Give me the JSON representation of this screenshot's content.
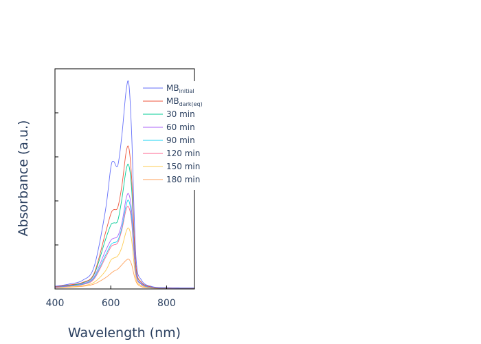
{
  "chart_data": {
    "type": "line",
    "title": "",
    "xlabel": "Wavelength (nm)",
    "ylabel": "Absorbance (a.u.)",
    "xlim": [
      400,
      900
    ],
    "ylim": [
      0,
      1.0
    ],
    "x_ticks": [
      "400",
      "600",
      "800"
    ],
    "y_ticks_labeled": false,
    "grid": false,
    "legend_position": "top-right",
    "series": [
      {
        "name": "MB",
        "name_sub": "initial",
        "color": "#636efa",
        "points": [
          [
            400,
            0.012
          ],
          [
            450,
            0.022
          ],
          [
            500,
            0.04
          ],
          [
            540,
            0.1
          ],
          [
            580,
            0.35
          ],
          [
            600,
            0.55
          ],
          [
            610,
            0.58
          ],
          [
            625,
            0.56
          ],
          [
            640,
            0.7
          ],
          [
            655,
            0.9
          ],
          [
            665,
            0.93
          ],
          [
            675,
            0.7
          ],
          [
            690,
            0.15
          ],
          [
            710,
            0.04
          ],
          [
            750,
            0.01
          ],
          [
            800,
            0.006
          ],
          [
            850,
            0.005
          ],
          [
            900,
            0.005
          ]
        ]
      },
      {
        "name": "MB",
        "name_sub": "dark(eq)",
        "color": "#EF553B",
        "points": [
          [
            400,
            0.01
          ],
          [
            450,
            0.018
          ],
          [
            500,
            0.03
          ],
          [
            540,
            0.07
          ],
          [
            580,
            0.25
          ],
          [
            600,
            0.34
          ],
          [
            610,
            0.36
          ],
          [
            625,
            0.37
          ],
          [
            640,
            0.47
          ],
          [
            655,
            0.62
          ],
          [
            665,
            0.64
          ],
          [
            675,
            0.5
          ],
          [
            690,
            0.11
          ],
          [
            710,
            0.03
          ],
          [
            750,
            0.008
          ],
          [
            800,
            0.005
          ],
          [
            900,
            0.004
          ]
        ]
      },
      {
        "name": "30 min",
        "color": "#00cc96",
        "points": [
          [
            400,
            0.01
          ],
          [
            450,
            0.016
          ],
          [
            500,
            0.028
          ],
          [
            540,
            0.065
          ],
          [
            580,
            0.22
          ],
          [
            600,
            0.29
          ],
          [
            610,
            0.3
          ],
          [
            625,
            0.31
          ],
          [
            640,
            0.41
          ],
          [
            655,
            0.54
          ],
          [
            665,
            0.56
          ],
          [
            675,
            0.45
          ],
          [
            690,
            0.1
          ],
          [
            710,
            0.03
          ],
          [
            750,
            0.008
          ],
          [
            800,
            0.005
          ],
          [
            900,
            0.004
          ]
        ]
      },
      {
        "name": "60 min",
        "color": "#ab63fa",
        "points": [
          [
            400,
            0.008
          ],
          [
            450,
            0.014
          ],
          [
            500,
            0.024
          ],
          [
            540,
            0.055
          ],
          [
            580,
            0.17
          ],
          [
            600,
            0.22
          ],
          [
            610,
            0.23
          ],
          [
            625,
            0.24
          ],
          [
            640,
            0.3
          ],
          [
            655,
            0.41
          ],
          [
            665,
            0.43
          ],
          [
            675,
            0.35
          ],
          [
            690,
            0.08
          ],
          [
            710,
            0.025
          ],
          [
            750,
            0.007
          ],
          [
            800,
            0.004
          ],
          [
            900,
            0.004
          ]
        ]
      },
      {
        "name": "90 min",
        "color": "#19d3f3",
        "points": [
          [
            400,
            0.008
          ],
          [
            450,
            0.013
          ],
          [
            500,
            0.022
          ],
          [
            540,
            0.05
          ],
          [
            580,
            0.15
          ],
          [
            600,
            0.2
          ],
          [
            610,
            0.21
          ],
          [
            625,
            0.22
          ],
          [
            640,
            0.28
          ],
          [
            655,
            0.38
          ],
          [
            665,
            0.4
          ],
          [
            675,
            0.32
          ],
          [
            690,
            0.075
          ],
          [
            710,
            0.022
          ],
          [
            750,
            0.006
          ],
          [
            800,
            0.004
          ],
          [
            900,
            0.004
          ]
        ]
      },
      {
        "name": "120 min",
        "color": "#ff6692",
        "points": [
          [
            400,
            0.007
          ],
          [
            450,
            0.012
          ],
          [
            500,
            0.02
          ],
          [
            540,
            0.045
          ],
          [
            580,
            0.14
          ],
          [
            600,
            0.19
          ],
          [
            610,
            0.2
          ],
          [
            625,
            0.21
          ],
          [
            640,
            0.27
          ],
          [
            655,
            0.36
          ],
          [
            665,
            0.37
          ],
          [
            675,
            0.3
          ],
          [
            690,
            0.07
          ],
          [
            710,
            0.02
          ],
          [
            750,
            0.006
          ],
          [
            800,
            0.004
          ],
          [
            900,
            0.004
          ]
        ]
      },
      {
        "name": "150 min",
        "color": "#fecb52",
        "points": [
          [
            400,
            0.006
          ],
          [
            450,
            0.009
          ],
          [
            500,
            0.015
          ],
          [
            540,
            0.03
          ],
          [
            580,
            0.08
          ],
          [
            600,
            0.13
          ],
          [
            610,
            0.14
          ],
          [
            625,
            0.15
          ],
          [
            640,
            0.19
          ],
          [
            655,
            0.26
          ],
          [
            665,
            0.275
          ],
          [
            675,
            0.22
          ],
          [
            690,
            0.05
          ],
          [
            710,
            0.015
          ],
          [
            750,
            0.005
          ],
          [
            800,
            0.004
          ],
          [
            900,
            0.004
          ]
        ]
      },
      {
        "name": "180 min",
        "color": "#FFA15A",
        "points": [
          [
            400,
            0.005
          ],
          [
            450,
            0.008
          ],
          [
            500,
            0.012
          ],
          [
            540,
            0.022
          ],
          [
            580,
            0.05
          ],
          [
            600,
            0.07
          ],
          [
            610,
            0.08
          ],
          [
            625,
            0.09
          ],
          [
            640,
            0.11
          ],
          [
            655,
            0.13
          ],
          [
            665,
            0.135
          ],
          [
            675,
            0.11
          ],
          [
            690,
            0.035
          ],
          [
            710,
            0.01
          ],
          [
            750,
            0.004
          ],
          [
            800,
            0.003
          ],
          [
            900,
            0.003
          ]
        ]
      }
    ]
  }
}
